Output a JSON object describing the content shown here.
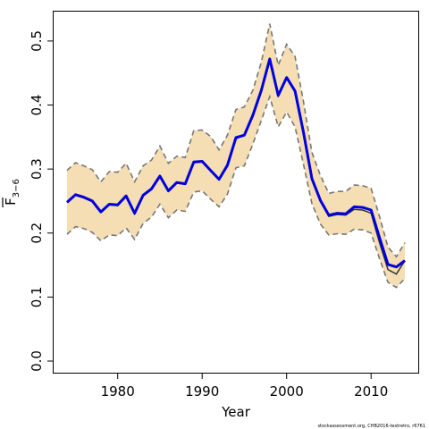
{
  "chart_data": {
    "type": "line",
    "xlabel": "Year",
    "ylabel_base": "F",
    "ylabel_subscript": "3−6",
    "credit": "stockassessment.org, CHB2016-testretro, r6761",
    "xlim": [
      1974,
      2014
    ],
    "ylim": [
      0,
      0.52
    ],
    "x_ticks": [
      1980,
      1990,
      2000,
      2010
    ],
    "y_ticks": [
      0.0,
      0.1,
      0.2,
      0.3,
      0.4,
      0.5
    ],
    "y_tick_labels": [
      "0.0",
      "0.1",
      "0.2",
      "0.3",
      "0.4",
      "0.5"
    ],
    "colors": {
      "band": "#f5deb3",
      "bound": "#777777",
      "estimate": "#0000dd",
      "retro": "#333333",
      "axis": "#000000"
    },
    "x": [
      1974,
      1975,
      1976,
      1977,
      1978,
      1979,
      1980,
      1981,
      1982,
      1983,
      1984,
      1985,
      1986,
      1987,
      1988,
      1989,
      1990,
      1991,
      1992,
      1993,
      1994,
      1995,
      1996,
      1997,
      1998,
      1999,
      2000,
      2001,
      2002,
      2003,
      2004,
      2005,
      2006,
      2007,
      2008,
      2009,
      2010,
      2011,
      2012,
      2013,
      2014
    ],
    "series": [
      {
        "role": "estimate",
        "values": [
          0.248,
          0.26,
          0.256,
          0.25,
          0.233,
          0.245,
          0.244,
          0.258,
          0.231,
          0.259,
          0.269,
          0.289,
          0.266,
          0.279,
          0.277,
          0.311,
          0.312,
          0.298,
          0.284,
          0.306,
          0.349,
          0.353,
          0.384,
          0.423,
          0.472,
          0.415,
          0.443,
          0.422,
          0.357,
          0.285,
          0.251,
          0.228,
          0.231,
          0.23,
          0.241,
          0.24,
          0.236,
          0.193,
          0.151,
          0.147,
          0.157
        ]
      },
      {
        "role": "retro",
        "values": [
          0.248,
          0.259,
          0.255,
          0.249,
          0.232,
          0.244,
          0.243,
          0.257,
          0.23,
          0.258,
          0.268,
          0.288,
          0.265,
          0.278,
          0.276,
          0.31,
          0.311,
          0.297,
          0.283,
          0.305,
          0.348,
          0.352,
          0.383,
          0.422,
          0.471,
          0.414,
          0.442,
          0.421,
          0.356,
          0.284,
          0.25,
          0.226,
          0.229,
          0.228,
          0.237,
          0.236,
          0.231,
          0.185,
          0.143,
          0.136,
          0.157
        ]
      },
      {
        "role": "upper",
        "values": [
          0.298,
          0.31,
          0.305,
          0.299,
          0.28,
          0.296,
          0.295,
          0.309,
          0.28,
          0.305,
          0.314,
          0.336,
          0.309,
          0.32,
          0.318,
          0.36,
          0.361,
          0.351,
          0.33,
          0.353,
          0.393,
          0.397,
          0.423,
          0.467,
          0.527,
          0.462,
          0.495,
          0.476,
          0.405,
          0.326,
          0.29,
          0.262,
          0.265,
          0.265,
          0.275,
          0.274,
          0.27,
          0.226,
          0.178,
          0.163,
          0.185
        ]
      },
      {
        "role": "lower",
        "values": [
          0.198,
          0.21,
          0.207,
          0.201,
          0.188,
          0.197,
          0.196,
          0.208,
          0.19,
          0.215,
          0.225,
          0.245,
          0.224,
          0.236,
          0.234,
          0.264,
          0.266,
          0.253,
          0.241,
          0.261,
          0.302,
          0.305,
          0.339,
          0.376,
          0.413,
          0.366,
          0.389,
          0.366,
          0.307,
          0.246,
          0.214,
          0.197,
          0.199,
          0.198,
          0.206,
          0.205,
          0.2,
          0.16,
          0.123,
          0.115,
          0.129
        ]
      }
    ]
  }
}
